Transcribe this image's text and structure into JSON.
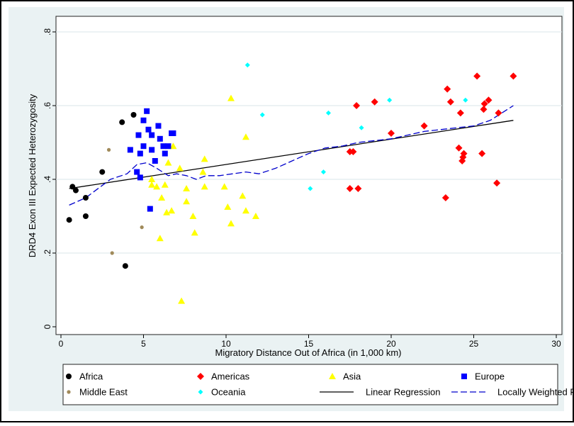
{
  "chart_data": {
    "type": "scatter",
    "title": "",
    "xlabel": "Migratory Distance Out of Africa (in 1,000 km)",
    "ylabel": "DRD4 Exon III Expected Heterozygosity",
    "xlim": [
      0,
      30
    ],
    "ylim": [
      0,
      0.8
    ],
    "xticks": [
      0,
      5,
      10,
      15,
      20,
      25,
      30
    ],
    "yticks": [
      0,
      0.2,
      0.4,
      0.6,
      0.8
    ],
    "xtick_labels": [
      "0",
      "5",
      "10",
      "15",
      "20",
      "25",
      "30"
    ],
    "ytick_labels": [
      "0",
      ".2",
      ".4",
      ".6",
      ".8"
    ],
    "grid": "horizontal",
    "legend_position": "bottom",
    "colors": {
      "plot_background": "#eaf2f3",
      "Africa": "#000000",
      "Americas": "#ff0000",
      "Asia": "#ffff00",
      "Europe": "#0000ff",
      "Middle East": "#a08a5a",
      "Oceania": "#00ffff",
      "Linear Regression": "#000000",
      "Locally Weighted Regression": "#0000cc"
    },
    "series": [
      {
        "name": "Africa",
        "marker": "circle",
        "points": [
          [
            0.5,
            0.29
          ],
          [
            0.7,
            0.38
          ],
          [
            0.9,
            0.37
          ],
          [
            1.5,
            0.35
          ],
          [
            1.5,
            0.3
          ],
          [
            2.5,
            0.42
          ],
          [
            3.7,
            0.555
          ],
          [
            3.9,
            0.165
          ],
          [
            4.4,
            0.575
          ]
        ]
      },
      {
        "name": "Americas",
        "marker": "diamond",
        "points": [
          [
            17.5,
            0.475
          ],
          [
            17.5,
            0.375
          ],
          [
            17.7,
            0.475
          ],
          [
            17.9,
            0.6
          ],
          [
            18.0,
            0.375
          ],
          [
            19.0,
            0.61
          ],
          [
            20.0,
            0.525
          ],
          [
            22.0,
            0.545
          ],
          [
            23.3,
            0.35
          ],
          [
            23.4,
            0.645
          ],
          [
            23.6,
            0.61
          ],
          [
            24.1,
            0.485
          ],
          [
            24.2,
            0.58
          ],
          [
            24.3,
            0.45
          ],
          [
            24.35,
            0.46
          ],
          [
            24.4,
            0.47
          ],
          [
            25.2,
            0.68
          ],
          [
            25.5,
            0.47
          ],
          [
            25.6,
            0.59
          ],
          [
            25.65,
            0.605
          ],
          [
            25.9,
            0.615
          ],
          [
            26.4,
            0.39
          ],
          [
            26.5,
            0.58
          ],
          [
            27.4,
            0.68
          ]
        ]
      },
      {
        "name": "Asia",
        "marker": "triangle",
        "points": [
          [
            5.5,
            0.4
          ],
          [
            5.5,
            0.385
          ],
          [
            5.8,
            0.38
          ],
          [
            6.0,
            0.24
          ],
          [
            6.1,
            0.35
          ],
          [
            6.3,
            0.385
          ],
          [
            6.4,
            0.31
          ],
          [
            6.5,
            0.445
          ],
          [
            6.7,
            0.315
          ],
          [
            6.8,
            0.49
          ],
          [
            7.2,
            0.43
          ],
          [
            7.3,
            0.07
          ],
          [
            7.6,
            0.375
          ],
          [
            7.6,
            0.34
          ],
          [
            8.0,
            0.3
          ],
          [
            8.1,
            0.255
          ],
          [
            8.6,
            0.42
          ],
          [
            8.7,
            0.455
          ],
          [
            8.7,
            0.38
          ],
          [
            9.9,
            0.38
          ],
          [
            10.1,
            0.325
          ],
          [
            10.3,
            0.62
          ],
          [
            10.3,
            0.28
          ],
          [
            11.0,
            0.355
          ],
          [
            11.2,
            0.515
          ],
          [
            11.2,
            0.315
          ],
          [
            11.8,
            0.3
          ]
        ]
      },
      {
        "name": "Europe",
        "marker": "square",
        "points": [
          [
            4.2,
            0.48
          ],
          [
            4.6,
            0.42
          ],
          [
            4.7,
            0.52
          ],
          [
            4.8,
            0.47
          ],
          [
            4.8,
            0.405
          ],
          [
            5.0,
            0.56
          ],
          [
            5.0,
            0.49
          ],
          [
            5.2,
            0.585
          ],
          [
            5.3,
            0.535
          ],
          [
            5.4,
            0.32
          ],
          [
            5.5,
            0.48
          ],
          [
            5.5,
            0.52
          ],
          [
            5.7,
            0.45
          ],
          [
            5.9,
            0.545
          ],
          [
            6.0,
            0.51
          ],
          [
            6.2,
            0.49
          ],
          [
            6.3,
            0.47
          ],
          [
            6.5,
            0.49
          ],
          [
            6.7,
            0.525
          ],
          [
            6.8,
            0.525
          ]
        ]
      },
      {
        "name": "Middle East",
        "marker": "circle-small",
        "points": [
          [
            2.9,
            0.48
          ],
          [
            3.1,
            0.2
          ],
          [
            4.9,
            0.27
          ]
        ]
      },
      {
        "name": "Oceania",
        "marker": "diamond-small",
        "points": [
          [
            11.3,
            0.71
          ],
          [
            12.2,
            0.575
          ],
          [
            15.1,
            0.375
          ],
          [
            15.9,
            0.42
          ],
          [
            16.2,
            0.58
          ],
          [
            18.2,
            0.54
          ],
          [
            19.9,
            0.615
          ],
          [
            24.5,
            0.615
          ]
        ]
      },
      {
        "name": "Linear Regression",
        "type": "line",
        "points": [
          [
            0.5,
            0.375
          ],
          [
            27.4,
            0.56
          ]
        ]
      },
      {
        "name": "Locally Weighted Regression",
        "type": "line",
        "dashed": true,
        "points": [
          [
            0.5,
            0.33
          ],
          [
            1.5,
            0.35
          ],
          [
            3.0,
            0.4
          ],
          [
            4.0,
            0.415
          ],
          [
            4.6,
            0.44
          ],
          [
            5.2,
            0.445
          ],
          [
            5.8,
            0.43
          ],
          [
            6.5,
            0.41
          ],
          [
            7.0,
            0.415
          ],
          [
            7.6,
            0.41
          ],
          [
            8.2,
            0.4
          ],
          [
            8.8,
            0.41
          ],
          [
            9.6,
            0.41
          ],
          [
            10.4,
            0.415
          ],
          [
            11.2,
            0.42
          ],
          [
            12.0,
            0.415
          ],
          [
            13.0,
            0.43
          ],
          [
            14.0,
            0.45
          ],
          [
            15.0,
            0.47
          ],
          [
            16.0,
            0.485
          ],
          [
            17.0,
            0.49
          ],
          [
            18.0,
            0.5
          ],
          [
            19.0,
            0.505
          ],
          [
            20.0,
            0.51
          ],
          [
            21.0,
            0.52
          ],
          [
            22.0,
            0.53
          ],
          [
            23.0,
            0.535
          ],
          [
            24.0,
            0.54
          ],
          [
            25.0,
            0.545
          ],
          [
            26.0,
            0.56
          ],
          [
            27.4,
            0.6
          ]
        ]
      }
    ]
  },
  "legend": {
    "items": [
      {
        "label": "Africa",
        "symbol": "circle",
        "color": "#000000"
      },
      {
        "label": "Americas",
        "symbol": "diamond",
        "color": "#ff0000"
      },
      {
        "label": "Asia",
        "symbol": "triangle",
        "color": "#ffff00"
      },
      {
        "label": "Europe",
        "symbol": "square",
        "color": "#0000ff"
      },
      {
        "label": "Middle East",
        "symbol": "circle-small",
        "color": "#a08a5a"
      },
      {
        "label": "Oceania",
        "symbol": "diamond-small",
        "color": "#00ffff"
      },
      {
        "label": "Linear Regression",
        "symbol": "line",
        "color": "#000000"
      },
      {
        "label": "Locally Weighted Regression",
        "symbol": "dashed-line",
        "color": "#0000cc"
      }
    ]
  }
}
